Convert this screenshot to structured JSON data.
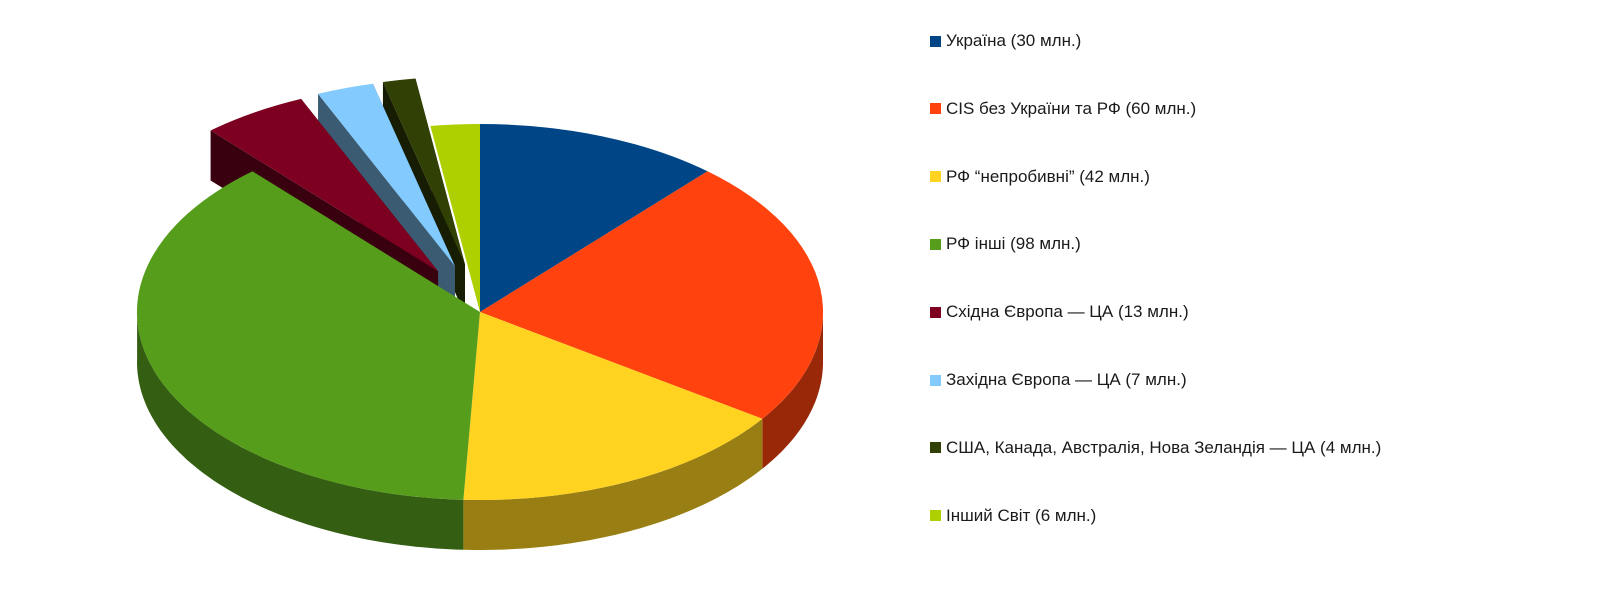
{
  "chart_data": {
    "type": "pie",
    "title": "",
    "three_d": true,
    "legend_position": "right",
    "start_angle_deg": 90,
    "direction": "clockwise",
    "slices": [
      {
        "label": "Україна (30 млн.)",
        "value": 30,
        "color": "#004586",
        "exploded": false
      },
      {
        "label": "CIS без України та РФ (60 млн.)",
        "value": 60,
        "color": "#ff420e",
        "exploded": false
      },
      {
        "label": "РФ “непробивні” (42 млн.)",
        "value": 42,
        "color": "#ffd320",
        "exploded": false
      },
      {
        "label": "РФ інші (98 млн.)",
        "value": 98,
        "color": "#579d1c",
        "exploded": false
      },
      {
        "label": "Східна Європа — ЦА (13 млн.)",
        "value": 13,
        "color": "#7e0021",
        "exploded": true
      },
      {
        "label": "Західна Європа — ЦА (7 млн.)",
        "value": 7,
        "color": "#83caff",
        "exploded": true
      },
      {
        "label": "США, Канада, Австралія, Нова Зеландія — ЦА (4 млн.)",
        "value": 4,
        "color": "#314004",
        "exploded": true
      },
      {
        "label": "Інший Світ (6 млн.)",
        "value": 6,
        "color": "#aecf00",
        "exploded": false
      }
    ]
  }
}
